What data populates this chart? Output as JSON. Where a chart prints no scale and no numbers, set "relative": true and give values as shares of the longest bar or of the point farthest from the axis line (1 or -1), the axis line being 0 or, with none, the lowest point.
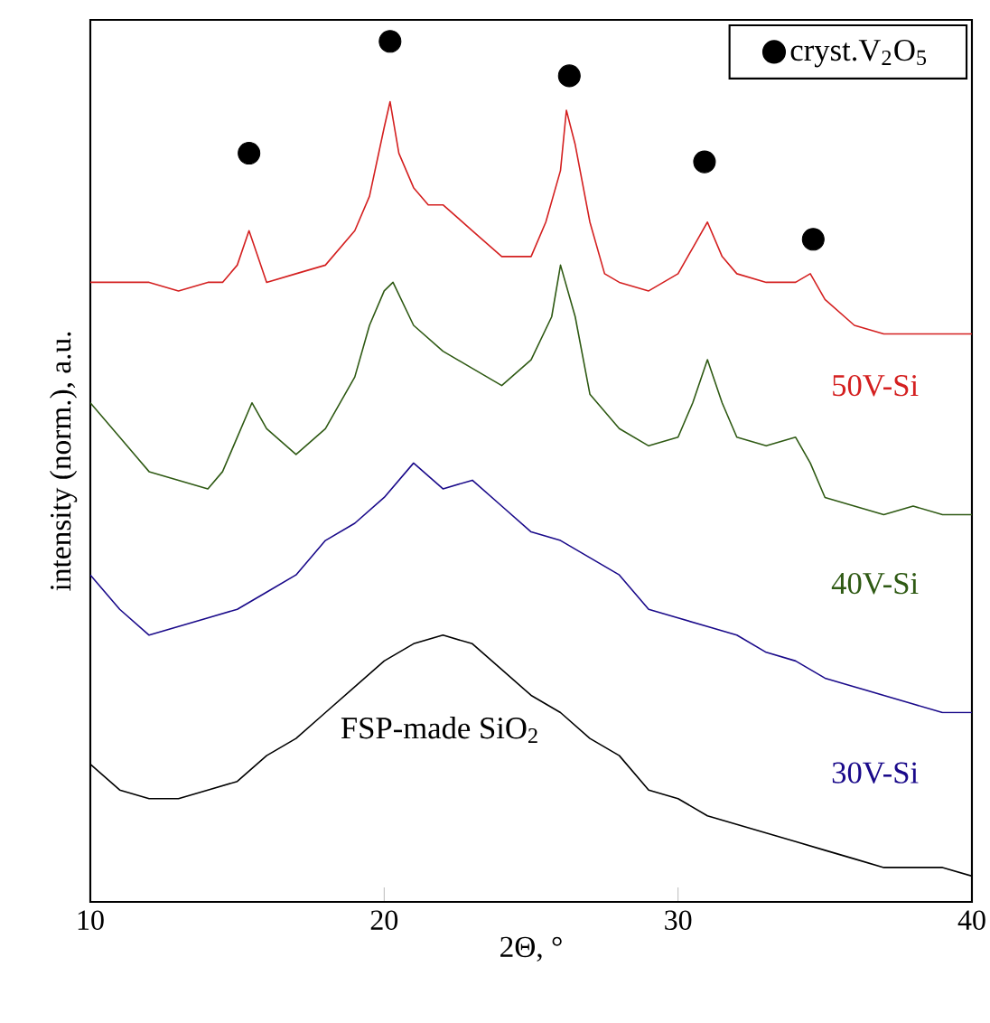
{
  "chart_data": {
    "type": "line",
    "relative": true,
    "xlabel": "2Θ, °",
    "ylabel": "intensity (norm.), a.u.",
    "xlim": [
      10,
      40
    ],
    "xticks": [
      10,
      20,
      30,
      40
    ],
    "legend": "top right",
    "marker": "none",
    "line_style": "solid",
    "series": [
      {
        "name": "50V-Si",
        "color": "#d42020",
        "x": [
          10,
          11,
          12,
          13,
          14,
          14.5,
          15,
          15.4,
          15.6,
          16,
          17,
          18,
          19,
          19.5,
          20,
          20.2,
          20.5,
          21,
          21.5,
          22,
          23,
          24,
          25,
          25.5,
          26,
          26.2,
          26.5,
          27,
          27.5,
          28,
          29,
          30,
          30.5,
          31,
          31.5,
          32,
          33,
          34,
          34.5,
          35,
          36,
          37,
          38,
          39,
          40
        ],
        "values": [
          0.72,
          0.72,
          0.72,
          0.71,
          0.72,
          0.72,
          0.74,
          0.78,
          0.76,
          0.72,
          0.73,
          0.74,
          0.78,
          0.82,
          0.9,
          0.93,
          0.87,
          0.83,
          0.81,
          0.81,
          0.78,
          0.75,
          0.75,
          0.79,
          0.85,
          0.92,
          0.88,
          0.79,
          0.73,
          0.72,
          0.71,
          0.73,
          0.76,
          0.79,
          0.75,
          0.73,
          0.72,
          0.72,
          0.73,
          0.7,
          0.67,
          0.66,
          0.66,
          0.66,
          0.66
        ]
      },
      {
        "name": "40V-Si",
        "color": "#2f5a14",
        "x": [
          10,
          11,
          12,
          13,
          14,
          14.5,
          15,
          15.5,
          16,
          17,
          18,
          19,
          19.5,
          20,
          20.3,
          21,
          22,
          23,
          24,
          25,
          25.7,
          26,
          26.5,
          27,
          28,
          29,
          30,
          30.5,
          31,
          31.5,
          32,
          33,
          34,
          34.5,
          35,
          36,
          37,
          38,
          39,
          40
        ],
        "values": [
          0.58,
          0.54,
          0.5,
          0.49,
          0.48,
          0.5,
          0.54,
          0.58,
          0.55,
          0.52,
          0.55,
          0.61,
          0.67,
          0.71,
          0.72,
          0.67,
          0.64,
          0.62,
          0.6,
          0.63,
          0.68,
          0.74,
          0.68,
          0.59,
          0.55,
          0.53,
          0.54,
          0.58,
          0.63,
          0.58,
          0.54,
          0.53,
          0.54,
          0.51,
          0.47,
          0.46,
          0.45,
          0.46,
          0.45,
          0.45
        ]
      },
      {
        "name": "30V-Si",
        "color": "#1a0a8a",
        "x": [
          10,
          11,
          12,
          13,
          14,
          15,
          16,
          17,
          18,
          19,
          20,
          21,
          22,
          23,
          24,
          25,
          26,
          27,
          28,
          29,
          30,
          31,
          32,
          33,
          34,
          35,
          36,
          37,
          38,
          39,
          40
        ],
        "values": [
          0.38,
          0.34,
          0.31,
          0.32,
          0.33,
          0.34,
          0.36,
          0.38,
          0.42,
          0.44,
          0.47,
          0.51,
          0.48,
          0.49,
          0.46,
          0.43,
          0.42,
          0.4,
          0.38,
          0.34,
          0.33,
          0.32,
          0.31,
          0.29,
          0.28,
          0.26,
          0.25,
          0.24,
          0.23,
          0.22,
          0.22
        ]
      },
      {
        "name": "FSP-made SiO$_{2}$",
        "color": "#000000",
        "x": [
          10,
          11,
          12,
          13,
          14,
          15,
          16,
          17,
          18,
          19,
          20,
          21,
          22,
          23,
          24,
          25,
          26,
          27,
          28,
          29,
          30,
          31,
          32,
          33,
          34,
          35,
          36,
          37,
          38,
          39,
          40
        ],
        "values": [
          0.16,
          0.13,
          0.12,
          0.12,
          0.13,
          0.14,
          0.17,
          0.19,
          0.22,
          0.25,
          0.28,
          0.3,
          0.31,
          0.3,
          0.27,
          0.24,
          0.22,
          0.19,
          0.17,
          0.13,
          0.12,
          0.1,
          0.09,
          0.08,
          0.07,
          0.06,
          0.05,
          0.04,
          0.04,
          0.04,
          0.03
        ]
      },
      {
        "name": "cryst.V$_{2}$O$_{5}$",
        "type": "scatter",
        "marker": "circle",
        "color": "#000000",
        "x": [
          15.4,
          20.2,
          26.3,
          30.9,
          34.6
        ],
        "values": [
          0.87,
          1.0,
          0.96,
          0.86,
          0.77
        ]
      }
    ]
  }
}
